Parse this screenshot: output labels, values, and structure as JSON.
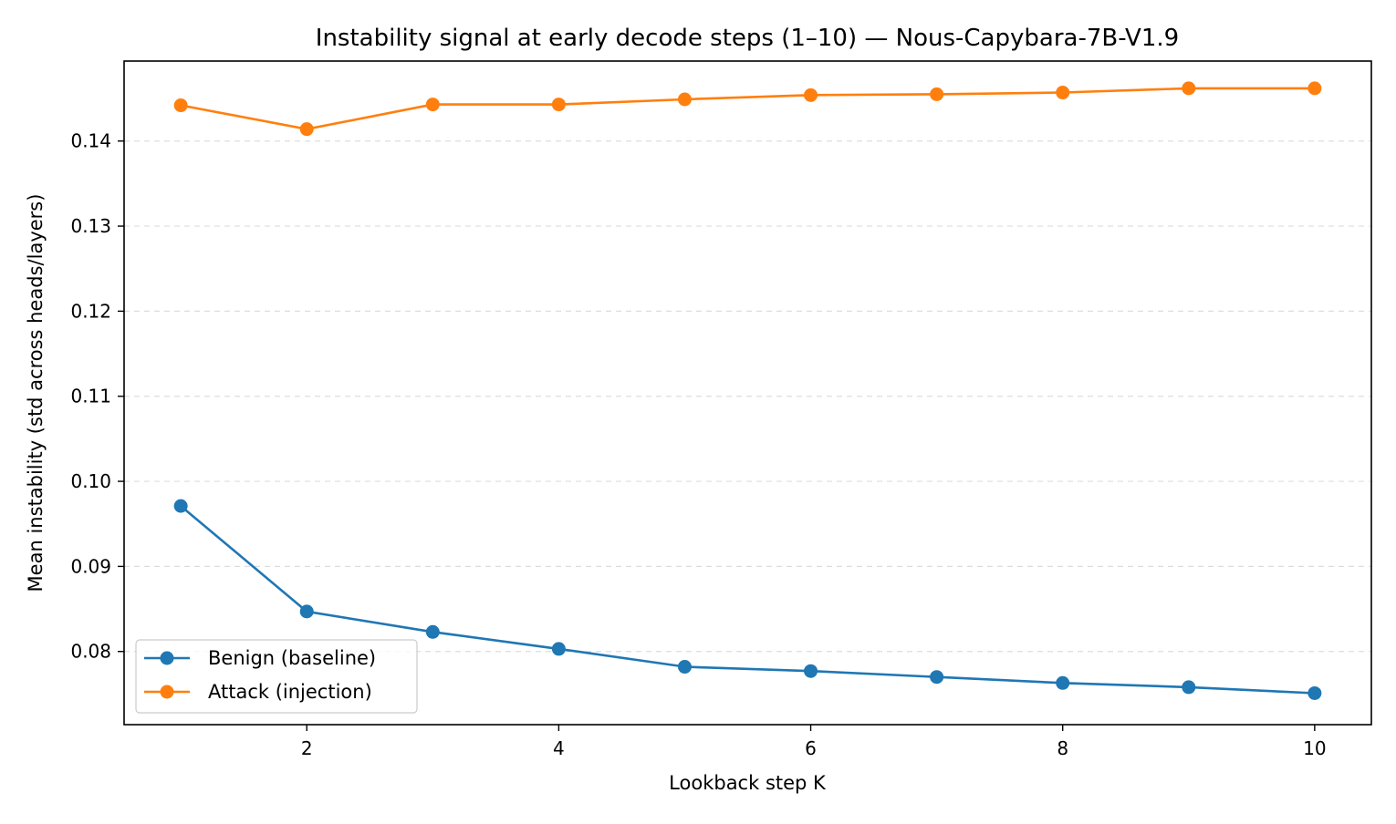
{
  "chart_data": {
    "type": "line",
    "title": "Instability signal at early decode steps (1–10) — Nous-Capybara-7B-V1.9",
    "xlabel": "Lookback step K",
    "ylabel": "Mean instability (std across heads/layers)",
    "x": [
      1,
      2,
      3,
      4,
      5,
      6,
      7,
      8,
      9,
      10
    ],
    "xlim": [
      0.55,
      10.45
    ],
    "ylim": [
      0.0714,
      0.1494
    ],
    "xticks": [
      2,
      4,
      6,
      8,
      10
    ],
    "xtick_labels": [
      "2",
      "4",
      "6",
      "8",
      "10"
    ],
    "yticks": [
      0.08,
      0.09,
      0.1,
      0.11,
      0.12,
      0.13,
      0.14
    ],
    "ytick_labels": [
      "0.08",
      "0.09",
      "0.10",
      "0.11",
      "0.12",
      "0.13",
      "0.14"
    ],
    "grid": "y-dashed",
    "legend_position": "lower-left",
    "series": [
      {
        "name": "Benign (baseline)",
        "color": "#1f77b4",
        "values": [
          0.0971,
          0.0847,
          0.0823,
          0.0803,
          0.0782,
          0.0777,
          0.077,
          0.0763,
          0.0758,
          0.0751
        ]
      },
      {
        "name": "Attack (injection)",
        "color": "#ff7f0e",
        "values": [
          0.1442,
          0.1414,
          0.1443,
          0.1443,
          0.1449,
          0.1454,
          0.1455,
          0.1457,
          0.1462,
          0.1462
        ]
      }
    ]
  }
}
